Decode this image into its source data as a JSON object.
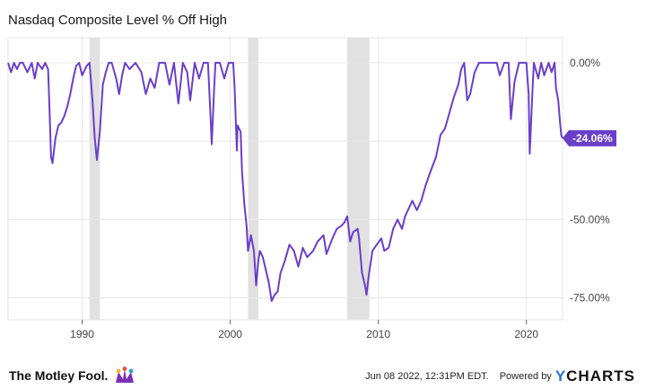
{
  "header": {
    "title": "Nasdaq Composite Level % Off High"
  },
  "footer": {
    "brand": "The Motley Fool.",
    "timestamp": "Jun 08 2022, 12:31PM EDT.",
    "powered_by": "Powered by",
    "ycharts_y": "Y",
    "ycharts_rest": "CHARTS"
  },
  "colors": {
    "line": "#6a3fc9",
    "recession": "#e1e1e1",
    "grid": "#e6e6e6",
    "badge": "#6a3fc9"
  },
  "chart_data": {
    "type": "line",
    "title": "Nasdaq Composite Level % Off High",
    "xlim": [
      1985.0,
      2022.44
    ],
    "ylim": [
      -82,
      8
    ],
    "x_ticks": [
      1990,
      2000,
      2010,
      2020
    ],
    "y_ticks": [
      {
        "value": 0,
        "label": "0.00%"
      },
      {
        "value": -50,
        "label": "-50.00%"
      },
      {
        "value": -75,
        "label": "-75.00%"
      }
    ],
    "last_value_label": "-24.06%",
    "last_value": -24.06,
    "recession_bands": [
      [
        1990.5,
        1991.2
      ],
      [
        2001.2,
        2001.9
      ],
      [
        2007.9,
        2009.4
      ]
    ],
    "grid": true,
    "series": [
      {
        "points": [
          [
            1985.0,
            0
          ],
          [
            1985.2,
            -3
          ],
          [
            1985.4,
            0
          ],
          [
            1985.6,
            -2
          ],
          [
            1985.8,
            0
          ],
          [
            1986.0,
            0
          ],
          [
            1986.3,
            -3
          ],
          [
            1986.6,
            0
          ],
          [
            1986.8,
            -5
          ],
          [
            1987.0,
            0
          ],
          [
            1987.3,
            -2
          ],
          [
            1987.5,
            0
          ],
          [
            1987.7,
            -2
          ],
          [
            1987.8,
            -15
          ],
          [
            1987.9,
            -30
          ],
          [
            1988.0,
            -32
          ],
          [
            1988.2,
            -24
          ],
          [
            1988.4,
            -20
          ],
          [
            1988.6,
            -19
          ],
          [
            1988.8,
            -17
          ],
          [
            1989.0,
            -14
          ],
          [
            1989.2,
            -10
          ],
          [
            1989.4,
            -5
          ],
          [
            1989.6,
            -1
          ],
          [
            1989.8,
            0
          ],
          [
            1990.0,
            -4
          ],
          [
            1990.3,
            -1
          ],
          [
            1990.5,
            0
          ],
          [
            1990.7,
            -12
          ],
          [
            1990.85,
            -24
          ],
          [
            1991.0,
            -31
          ],
          [
            1991.2,
            -22
          ],
          [
            1991.4,
            -7
          ],
          [
            1991.6,
            -3
          ],
          [
            1991.8,
            0
          ],
          [
            1992.0,
            0
          ],
          [
            1992.3,
            -5
          ],
          [
            1992.5,
            -10
          ],
          [
            1992.7,
            -4
          ],
          [
            1992.9,
            0
          ],
          [
            1993.2,
            -2
          ],
          [
            1993.6,
            0
          ],
          [
            1994.0,
            -3
          ],
          [
            1994.3,
            -10
          ],
          [
            1994.6,
            -5
          ],
          [
            1994.9,
            -8
          ],
          [
            1995.2,
            0
          ],
          [
            1995.6,
            0
          ],
          [
            1995.9,
            -7
          ],
          [
            1996.2,
            0
          ],
          [
            1996.5,
            -13
          ],
          [
            1996.8,
            0
          ],
          [
            1997.1,
            -3
          ],
          [
            1997.3,
            -12
          ],
          [
            1997.6,
            0
          ],
          [
            1997.9,
            -5
          ],
          [
            1998.2,
            0
          ],
          [
            1998.5,
            0
          ],
          [
            1998.65,
            -15
          ],
          [
            1998.75,
            -26
          ],
          [
            1998.9,
            -10
          ],
          [
            1999.0,
            0
          ],
          [
            1999.3,
            0
          ],
          [
            1999.6,
            -5
          ],
          [
            1999.9,
            0
          ],
          [
            2000.2,
            0
          ],
          [
            2000.3,
            -8
          ],
          [
            2000.45,
            -28
          ],
          [
            2000.5,
            -20
          ],
          [
            2000.7,
            -22
          ],
          [
            2000.8,
            -35
          ],
          [
            2000.95,
            -45
          ],
          [
            2001.1,
            -52
          ],
          [
            2001.2,
            -60
          ],
          [
            2001.4,
            -55
          ],
          [
            2001.6,
            -60
          ],
          [
            2001.75,
            -71
          ],
          [
            2001.9,
            -63
          ],
          [
            2002.0,
            -60
          ],
          [
            2002.2,
            -62
          ],
          [
            2002.4,
            -66
          ],
          [
            2002.6,
            -70
          ],
          [
            2002.8,
            -76
          ],
          [
            2003.0,
            -74
          ],
          [
            2003.2,
            -73
          ],
          [
            2003.4,
            -67
          ],
          [
            2003.7,
            -63
          ],
          [
            2004.0,
            -58
          ],
          [
            2004.3,
            -60
          ],
          [
            2004.6,
            -65
          ],
          [
            2004.9,
            -59
          ],
          [
            2005.2,
            -62
          ],
          [
            2005.6,
            -60
          ],
          [
            2005.9,
            -57
          ],
          [
            2006.3,
            -55
          ],
          [
            2006.5,
            -61
          ],
          [
            2006.9,
            -56
          ],
          [
            2007.2,
            -53
          ],
          [
            2007.5,
            -52
          ],
          [
            2007.7,
            -51
          ],
          [
            2007.9,
            -49
          ],
          [
            2008.1,
            -57
          ],
          [
            2008.3,
            -54
          ],
          [
            2008.6,
            -53
          ],
          [
            2008.7,
            -56
          ],
          [
            2008.9,
            -67
          ],
          [
            2009.1,
            -71
          ],
          [
            2009.2,
            -74
          ],
          [
            2009.35,
            -68
          ],
          [
            2009.6,
            -60
          ],
          [
            2009.9,
            -58
          ],
          [
            2010.2,
            -56
          ],
          [
            2010.4,
            -60
          ],
          [
            2010.7,
            -59
          ],
          [
            2011.0,
            -53
          ],
          [
            2011.3,
            -50
          ],
          [
            2011.6,
            -53
          ],
          [
            2011.8,
            -49
          ],
          [
            2012.0,
            -47
          ],
          [
            2012.3,
            -44
          ],
          [
            2012.6,
            -47
          ],
          [
            2012.9,
            -44
          ],
          [
            2013.2,
            -39
          ],
          [
            2013.5,
            -35
          ],
          [
            2013.9,
            -30
          ],
          [
            2014.2,
            -23
          ],
          [
            2014.5,
            -21
          ],
          [
            2014.8,
            -16
          ],
          [
            2015.1,
            -11
          ],
          [
            2015.4,
            -7
          ],
          [
            2015.6,
            -2
          ],
          [
            2015.8,
            0
          ],
          [
            2016.0,
            -12
          ],
          [
            2016.2,
            -10
          ],
          [
            2016.5,
            -3
          ],
          [
            2016.8,
            0
          ],
          [
            2017.2,
            0
          ],
          [
            2017.6,
            0
          ],
          [
            2018.0,
            0
          ],
          [
            2018.2,
            -4
          ],
          [
            2018.5,
            0
          ],
          [
            2018.8,
            0
          ],
          [
            2018.95,
            -18
          ],
          [
            2019.2,
            -6
          ],
          [
            2019.5,
            0
          ],
          [
            2019.8,
            0
          ],
          [
            2020.0,
            0
          ],
          [
            2020.15,
            -10
          ],
          [
            2020.22,
            -29
          ],
          [
            2020.4,
            -10
          ],
          [
            2020.5,
            0
          ],
          [
            2020.8,
            -5
          ],
          [
            2021.0,
            0
          ],
          [
            2021.2,
            -4
          ],
          [
            2021.5,
            0
          ],
          [
            2021.7,
            -3
          ],
          [
            2021.9,
            0
          ],
          [
            2022.0,
            -8
          ],
          [
            2022.15,
            -12
          ],
          [
            2022.25,
            -18
          ],
          [
            2022.35,
            -23
          ],
          [
            2022.44,
            -24.06
          ]
        ]
      }
    ]
  }
}
